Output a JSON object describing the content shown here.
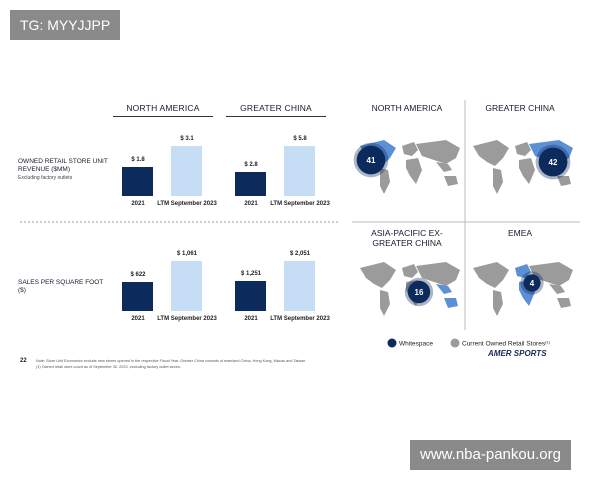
{
  "overlay_tag": "TG: MYYJJPP",
  "watermark": "www.nba-pankou.org",
  "page_number": "22",
  "unit_economics": {
    "columns": [
      "NORTH AMERICA",
      "GREATER CHINA"
    ],
    "categories": [
      "2021",
      "LTM September 2023"
    ],
    "colors": [
      "#0d2a5c",
      "#c6ddf6"
    ],
    "rows": [
      {
        "label": "OWNED RETAIL STORE UNIT REVENUE ($MM)",
        "sublabel": "Excluding factory outlets",
        "values": [
          [
            1.8,
            3.1
          ],
          [
            2.8,
            5.8
          ]
        ],
        "value_labels": [
          [
            "$ 1.8",
            "$ 3.1"
          ],
          [
            "$ 2.8",
            "$ 5.8"
          ]
        ]
      },
      {
        "label": "SALES PER SQUARE FOOT ($)",
        "values": [
          [
            622,
            1061
          ],
          [
            1251,
            2051
          ]
        ],
        "value_labels": [
          [
            "$ 622",
            "$ 1,061"
          ],
          [
            "$ 1,251",
            "$ 2,051"
          ]
        ]
      }
    ]
  },
  "store_map": {
    "regions": [
      {
        "name": "NORTH AMERICA",
        "stores": 41
      },
      {
        "name": "GREATER CHINA",
        "stores": 42
      },
      {
        "name": "ASIA-PACIFIC EX-GREATER CHINA",
        "stores": 16
      },
      {
        "name": "EMEA",
        "stores": 4
      }
    ],
    "legend": [
      "Whitespace",
      "Current Owned Retail Stores"
    ],
    "footnote_marker": "(1)"
  },
  "logo": "AMER SPORTS",
  "notes": [
    "Note: Store Unit Economics exclude new stores opened in the respective Fiscal Year. Greater China consists of mainland China, Hong Kong, Macau and Taiwan",
    "(1)    Owned retail store count as of September 30, 2023, excluding factory outlet stores."
  ]
}
